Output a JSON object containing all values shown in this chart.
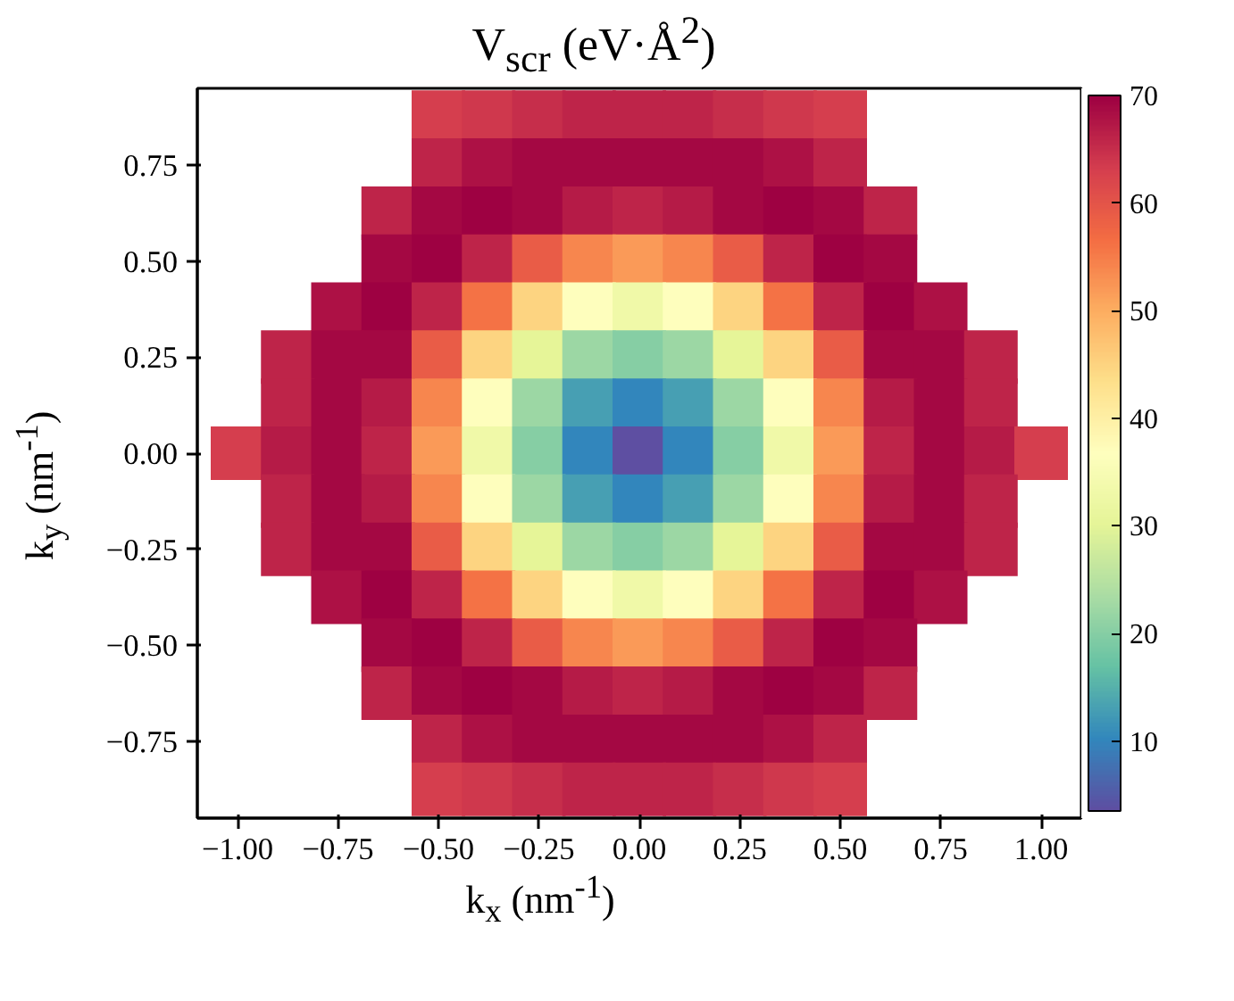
{
  "chart_data": {
    "type": "scatter",
    "title": "V$_{scr}$ (eV·Å$^{2}$)",
    "xlabel": "k$_{x}$ (nm$^{-1}$)",
    "ylabel": "k$_{y}$ (nm$^{-1}$)",
    "marker": "square",
    "grid": false,
    "x": [
      -0.5,
      -0.375,
      -0.25,
      -0.125,
      0,
      0.125,
      0.25,
      0.375,
      0.5,
      -0.5,
      -0.375,
      -0.25,
      -0.125,
      0,
      0.125,
      0.25,
      0.375,
      0.5,
      -0.625,
      -0.5,
      -0.375,
      -0.25,
      -0.125,
      0,
      0.125,
      0.25,
      0.375,
      0.5,
      0.625,
      -0.625,
      -0.5,
      -0.375,
      -0.25,
      -0.125,
      0,
      0.125,
      0.25,
      0.375,
      0.5,
      0.625,
      -0.75,
      -0.625,
      -0.5,
      -0.375,
      -0.25,
      -0.125,
      0,
      0.125,
      0.25,
      0.375,
      0.5,
      0.625,
      0.75,
      -0.875,
      -0.75,
      -0.625,
      -0.5,
      -0.375,
      -0.25,
      -0.125,
      0,
      0.125,
      0.25,
      0.375,
      0.5,
      0.625,
      0.75,
      0.875,
      -0.875,
      -0.75,
      -0.625,
      -0.5,
      -0.375,
      -0.25,
      -0.125,
      0,
      0.125,
      0.25,
      0.375,
      0.5,
      0.625,
      0.75,
      0.875,
      -1,
      -0.875,
      -0.75,
      -0.625,
      -0.5,
      -0.375,
      -0.25,
      -0.125,
      0,
      0.125,
      0.25,
      0.375,
      0.5,
      0.625,
      0.75,
      0.875,
      1,
      -0.875,
      -0.75,
      -0.625,
      -0.5,
      -0.375,
      -0.25,
      -0.125,
      0,
      0.125,
      0.25,
      0.375,
      0.5,
      0.625,
      0.75,
      0.875,
      -0.875,
      -0.75,
      -0.625,
      -0.5,
      -0.375,
      -0.25,
      -0.125,
      0,
      0.125,
      0.25,
      0.375,
      0.5,
      0.625,
      0.75,
      0.875,
      -0.75,
      -0.625,
      -0.5,
      -0.375,
      -0.25,
      -0.125,
      0,
      0.125,
      0.25,
      0.375,
      0.5,
      0.625,
      0.75,
      -0.625,
      -0.5,
      -0.375,
      -0.25,
      -0.125,
      0,
      0.125,
      0.25,
      0.375,
      0.5,
      0.625,
      -0.625,
      -0.5,
      -0.375,
      -0.25,
      -0.125,
      0,
      0.125,
      0.25,
      0.375,
      0.5,
      0.625,
      -0.5,
      -0.375,
      -0.25,
      -0.125,
      0,
      0.125,
      0.25,
      0.375,
      0.5,
      -0.5,
      -0.375,
      -0.25,
      -0.125,
      0,
      0.125,
      0.25,
      0.375,
      0.5
    ],
    "values": [
      0.875,
      0.875,
      0.875,
      0.875,
      0.875,
      0.875,
      0.875,
      0.875,
      0.875,
      0.75,
      0.75,
      0.75,
      0.75,
      0.75,
      0.75,
      0.75,
      0.75,
      0.75,
      0.625,
      0.625,
      0.625,
      0.625,
      0.625,
      0.625,
      0.625,
      0.625,
      0.625,
      0.625,
      0.625,
      0.5,
      0.5,
      0.5,
      0.5,
      0.5,
      0.5,
      0.5,
      0.5,
      0.5,
      0.5,
      0.5,
      0.375,
      0.375,
      0.375,
      0.375,
      0.375,
      0.375,
      0.375,
      0.375,
      0.375,
      0.375,
      0.375,
      0.375,
      0.375,
      0.25,
      0.25,
      0.25,
      0.25,
      0.25,
      0.25,
      0.25,
      0.25,
      0.25,
      0.25,
      0.25,
      0.25,
      0.25,
      0.25,
      0.25,
      0.125,
      0.125,
      0.125,
      0.125,
      0.125,
      0.125,
      0.125,
      0.125,
      0.125,
      0.125,
      0.125,
      0.125,
      0.125,
      0.125,
      0.125,
      0,
      0,
      0,
      0,
      0,
      0,
      0,
      0,
      0,
      0,
      0,
      0,
      0,
      0,
      0,
      0,
      0,
      -0.125,
      -0.125,
      -0.125,
      -0.125,
      -0.125,
      -0.125,
      -0.125,
      -0.125,
      -0.125,
      -0.125,
      -0.125,
      -0.125,
      -0.125,
      -0.125,
      -0.125,
      -0.25,
      -0.25,
      -0.25,
      -0.25,
      -0.25,
      -0.25,
      -0.25,
      -0.25,
      -0.25,
      -0.25,
      -0.25,
      -0.25,
      -0.25,
      -0.25,
      -0.25,
      -0.375,
      -0.375,
      -0.375,
      -0.375,
      -0.375,
      -0.375,
      -0.375,
      -0.375,
      -0.375,
      -0.375,
      -0.375,
      -0.375,
      -0.375,
      -0.5,
      -0.5,
      -0.5,
      -0.5,
      -0.5,
      -0.5,
      -0.5,
      -0.5,
      -0.5,
      -0.5,
      -0.5,
      -0.625,
      -0.625,
      -0.625,
      -0.625,
      -0.625,
      -0.625,
      -0.625,
      -0.625,
      -0.625,
      -0.625,
      -0.625,
      -0.75,
      -0.75,
      -0.75,
      -0.75,
      -0.75,
      -0.75,
      -0.75,
      -0.75,
      -0.75,
      -0.875,
      -0.875,
      -0.875,
      -0.875,
      -0.875,
      -0.875,
      -0.875,
      -0.875,
      -0.875
    ],
    "cvalues": [
      63,
      64,
      65,
      66,
      66,
      66,
      65,
      64,
      63,
      66,
      68,
      69,
      69,
      69,
      69,
      69,
      68,
      66,
      66,
      69,
      70,
      69,
      67,
      66,
      67,
      69,
      70,
      69,
      66,
      69,
      70,
      66,
      59,
      54,
      52,
      54,
      59,
      66,
      70,
      69,
      68,
      70,
      66,
      56,
      45,
      37,
      33,
      37,
      45,
      56,
      66,
      70,
      68,
      66,
      69,
      69,
      59,
      45,
      30,
      22,
      20,
      22,
      30,
      45,
      59,
      69,
      69,
      66,
      66,
      69,
      67,
      54,
      37,
      22,
      13,
      10,
      13,
      22,
      37,
      54,
      67,
      69,
      66,
      63,
      67,
      69,
      66,
      52,
      33,
      20,
      10,
      3,
      10,
      20,
      33,
      52,
      66,
      69,
      67,
      63,
      66,
      69,
      67,
      54,
      37,
      22,
      13,
      10,
      13,
      22,
      37,
      54,
      67,
      69,
      66,
      66,
      69,
      69,
      59,
      45,
      30,
      22,
      20,
      22,
      30,
      45,
      59,
      69,
      69,
      66,
      68,
      70,
      66,
      56,
      45,
      37,
      33,
      37,
      45,
      56,
      66,
      70,
      68,
      69,
      70,
      66,
      59,
      54,
      52,
      54,
      59,
      66,
      70,
      69,
      66,
      69,
      70,
      69,
      67,
      66,
      67,
      69,
      70,
      69,
      66,
      66,
      68,
      69,
      69,
      69,
      69,
      69,
      68,
      66,
      63,
      64,
      65,
      66,
      66,
      66,
      65,
      64,
      63
    ],
    "xlim": [
      -1.1,
      1.1
    ],
    "ylim": [
      -0.95,
      0.95
    ],
    "xticks": [
      {
        "value": -1,
        "label": "−1.00"
      },
      {
        "value": -0.75,
        "label": "−0.75"
      },
      {
        "value": -0.5,
        "label": "−0.50"
      },
      {
        "value": -0.25,
        "label": "−0.25"
      },
      {
        "value": 0,
        "label": "0.00"
      },
      {
        "value": 0.25,
        "label": "0.25"
      },
      {
        "value": 0.5,
        "label": "0.50"
      },
      {
        "value": 0.75,
        "label": "0.75"
      },
      {
        "value": 1,
        "label": "1.00"
      }
    ],
    "yticks": [
      {
        "value": -0.75,
        "label": "−0.75"
      },
      {
        "value": -0.5,
        "label": "−0.50"
      },
      {
        "value": -0.25,
        "label": "−0.25"
      },
      {
        "value": 0,
        "label": "0.00"
      },
      {
        "value": 0.25,
        "label": "0.25"
      },
      {
        "value": 0.5,
        "label": "0.50"
      },
      {
        "value": 0.75,
        "label": "0.75"
      }
    ],
    "clim": [
      3.5,
      70
    ],
    "cticks": [
      10,
      20,
      30,
      40,
      50,
      60,
      70
    ]
  }
}
